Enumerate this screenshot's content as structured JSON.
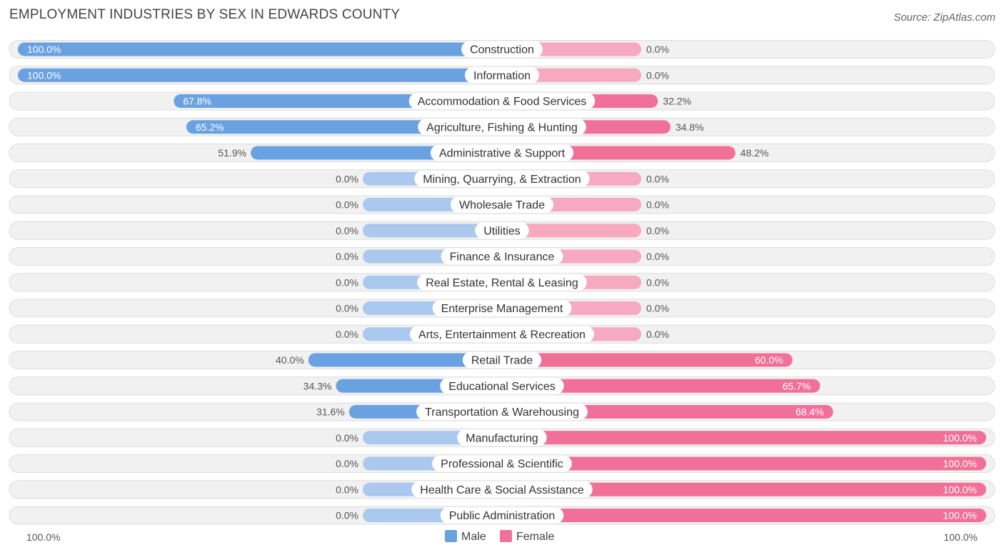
{
  "header": {
    "title": "EMPLOYMENT INDUSTRIES BY SEX IN EDWARDS COUNTY",
    "source": "Source: ZipAtlas.com"
  },
  "legend": {
    "male_label": "Male",
    "female_label": "Female"
  },
  "axis": {
    "left_label": "100.0%",
    "right_label": "100.0%"
  },
  "colors": {
    "male_strong": "#6aa1e0",
    "male_light": "#abc9ee",
    "female_strong": "#f0709a",
    "female_light": "#f6a9c1",
    "row_bg": "#f1f1f1",
    "row_border": "#dddddd"
  },
  "chart_data": {
    "type": "bar",
    "orientation": "horizontal-diverging",
    "title": "EMPLOYMENT INDUSTRIES BY SEX IN EDWARDS COUNTY",
    "xlim": [
      -100,
      100
    ],
    "categories": [
      "Construction",
      "Information",
      "Accommodation & Food Services",
      "Agriculture, Fishing & Hunting",
      "Administrative & Support",
      "Mining, Quarrying, & Extraction",
      "Wholesale Trade",
      "Utilities",
      "Finance & Insurance",
      "Real Estate, Rental & Leasing",
      "Enterprise Management",
      "Arts, Entertainment & Recreation",
      "Retail Trade",
      "Educational Services",
      "Transportation & Warehousing",
      "Manufacturing",
      "Professional & Scientific",
      "Health Care & Social Assistance",
      "Public Administration"
    ],
    "series": [
      {
        "name": "Male",
        "values": [
          100.0,
          100.0,
          67.8,
          65.2,
          51.9,
          0.0,
          0.0,
          0.0,
          0.0,
          0.0,
          0.0,
          0.0,
          40.0,
          34.3,
          31.6,
          0.0,
          0.0,
          0.0,
          0.0
        ]
      },
      {
        "name": "Female",
        "values": [
          0.0,
          0.0,
          32.2,
          34.8,
          48.2,
          0.0,
          0.0,
          0.0,
          0.0,
          0.0,
          0.0,
          0.0,
          60.0,
          65.7,
          68.4,
          100.0,
          100.0,
          100.0,
          100.0
        ]
      }
    ],
    "value_labels": {
      "male": [
        "100.0%",
        "100.0%",
        "67.8%",
        "65.2%",
        "51.9%",
        "0.0%",
        "0.0%",
        "0.0%",
        "0.0%",
        "0.0%",
        "0.0%",
        "0.0%",
        "40.0%",
        "34.3%",
        "31.6%",
        "0.0%",
        "0.0%",
        "0.0%",
        "0.0%"
      ],
      "female": [
        "0.0%",
        "0.0%",
        "32.2%",
        "34.8%",
        "48.2%",
        "0.0%",
        "0.0%",
        "0.0%",
        "0.0%",
        "0.0%",
        "0.0%",
        "0.0%",
        "60.0%",
        "65.7%",
        "68.4%",
        "100.0%",
        "100.0%",
        "100.0%",
        "100.0%"
      ]
    },
    "legend_position": "bottom-center"
  }
}
